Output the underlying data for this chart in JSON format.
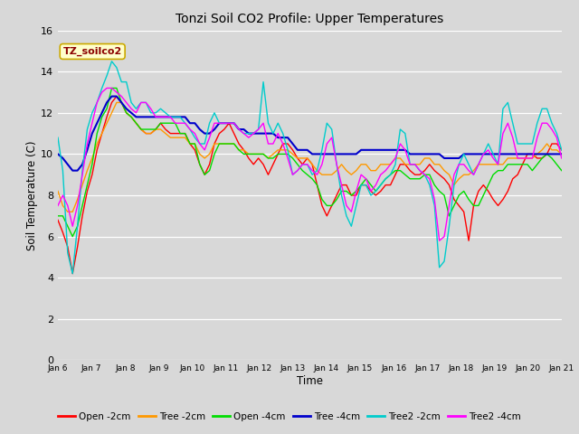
{
  "title": "Tonzi Soil CO2 Profile: Upper Temperatures",
  "xlabel": "Time",
  "ylabel": "Soil Temperature (C)",
  "ylim": [
    0,
    16
  ],
  "yticks": [
    0,
    2,
    4,
    6,
    8,
    10,
    12,
    14,
    16
  ],
  "background_color": "#d8d8d8",
  "plot_bg_color": "#d8d8d8",
  "text_label": "TZ_soilco2",
  "text_label_color": "#8b0000",
  "text_label_bg": "#ffffcc",
  "text_label_edge": "#ccaa00",
  "series": [
    {
      "label": "Open -2cm",
      "color": "#ff0000",
      "linewidth": 1.0,
      "data": [
        6.8,
        6.2,
        5.5,
        4.2,
        5.5,
        7.0,
        8.2,
        9.0,
        10.2,
        11.0,
        11.8,
        12.5,
        12.8,
        12.5,
        12.0,
        11.8,
        11.5,
        11.2,
        11.0,
        11.0,
        11.2,
        11.5,
        11.2,
        11.0,
        11.0,
        11.0,
        11.0,
        10.5,
        10.2,
        9.5,
        9.0,
        9.5,
        10.5,
        11.0,
        11.2,
        11.5,
        11.0,
        10.5,
        10.2,
        9.8,
        9.5,
        9.8,
        9.5,
        9.0,
        9.5,
        10.0,
        10.5,
        10.5,
        10.2,
        9.8,
        9.5,
        9.8,
        9.5,
        8.5,
        7.5,
        7.0,
        7.5,
        8.0,
        8.5,
        8.5,
        8.0,
        8.0,
        8.5,
        8.5,
        8.2,
        8.0,
        8.2,
        8.5,
        8.5,
        9.0,
        9.5,
        9.5,
        9.2,
        9.0,
        9.0,
        9.2,
        9.5,
        9.2,
        9.0,
        8.8,
        8.5,
        7.8,
        7.5,
        7.2,
        5.8,
        7.5,
        8.2,
        8.5,
        8.2,
        7.8,
        7.5,
        7.8,
        8.2,
        8.8,
        9.0,
        9.5,
        10.0,
        10.0,
        9.8,
        9.8,
        10.0,
        10.5,
        10.5,
        10.2
      ]
    },
    {
      "label": "Tree -2cm",
      "color": "#ff9900",
      "linewidth": 1.0,
      "data": [
        8.2,
        7.5,
        7.2,
        7.2,
        7.8,
        8.5,
        9.2,
        9.8,
        10.5,
        11.0,
        11.5,
        12.0,
        12.5,
        12.5,
        12.0,
        11.8,
        11.5,
        11.2,
        11.0,
        11.0,
        11.2,
        11.2,
        11.0,
        10.8,
        10.8,
        10.8,
        10.8,
        10.5,
        10.5,
        10.0,
        9.8,
        10.0,
        10.5,
        10.5,
        10.5,
        10.5,
        10.5,
        10.2,
        10.2,
        10.0,
        10.0,
        10.0,
        10.0,
        9.8,
        10.0,
        10.2,
        10.2,
        10.2,
        10.0,
        9.8,
        9.8,
        9.8,
        9.5,
        9.2,
        9.0,
        9.0,
        9.0,
        9.2,
        9.5,
        9.2,
        9.0,
        9.2,
        9.5,
        9.5,
        9.2,
        9.2,
        9.5,
        9.5,
        9.5,
        9.8,
        9.8,
        9.5,
        9.5,
        9.5,
        9.5,
        9.8,
        9.8,
        9.5,
        9.5,
        9.2,
        9.0,
        8.5,
        8.8,
        9.0,
        9.0,
        9.2,
        9.5,
        9.5,
        9.5,
        9.5,
        9.5,
        9.5,
        9.8,
        9.8,
        9.8,
        9.8,
        9.8,
        9.8,
        10.0,
        10.2,
        10.5,
        10.2,
        10.2,
        10.0
      ]
    },
    {
      "label": "Open -4cm",
      "color": "#00dd00",
      "linewidth": 1.0,
      "data": [
        7.0,
        7.0,
        6.5,
        6.0,
        6.5,
        7.5,
        8.5,
        9.5,
        11.0,
        11.8,
        12.2,
        13.2,
        13.2,
        12.5,
        12.0,
        11.8,
        11.5,
        11.2,
        11.2,
        11.2,
        11.2,
        11.5,
        11.5,
        11.5,
        11.5,
        11.0,
        11.0,
        10.5,
        10.5,
        9.5,
        9.0,
        9.2,
        10.0,
        10.5,
        10.5,
        10.5,
        10.5,
        10.2,
        10.0,
        10.0,
        10.0,
        10.0,
        10.0,
        9.8,
        9.8,
        10.0,
        10.0,
        10.0,
        9.8,
        9.5,
        9.2,
        9.0,
        8.8,
        8.5,
        7.8,
        7.5,
        7.5,
        7.8,
        8.2,
        8.2,
        8.0,
        8.2,
        8.5,
        8.8,
        8.5,
        8.2,
        8.5,
        8.8,
        9.0,
        9.2,
        9.2,
        9.0,
        8.8,
        8.8,
        8.8,
        9.0,
        9.0,
        8.5,
        8.2,
        8.0,
        7.0,
        7.5,
        8.0,
        8.2,
        7.8,
        7.5,
        7.5,
        8.0,
        8.5,
        9.0,
        9.2,
        9.2,
        9.5,
        9.5,
        9.5,
        9.5,
        9.5,
        9.2,
        9.5,
        9.8,
        10.0,
        9.8,
        9.5,
        9.2
      ]
    },
    {
      "label": "Tree -4cm",
      "color": "#0000cc",
      "linewidth": 1.5,
      "data": [
        10.0,
        9.8,
        9.5,
        9.2,
        9.2,
        9.5,
        10.2,
        11.0,
        11.5,
        12.0,
        12.5,
        12.8,
        12.8,
        12.5,
        12.2,
        12.0,
        11.8,
        11.8,
        11.8,
        11.8,
        11.8,
        11.8,
        11.8,
        11.8,
        11.8,
        11.8,
        11.8,
        11.5,
        11.5,
        11.2,
        11.0,
        11.0,
        11.2,
        11.5,
        11.5,
        11.5,
        11.5,
        11.2,
        11.2,
        11.0,
        11.0,
        11.0,
        11.0,
        11.0,
        11.0,
        10.8,
        10.8,
        10.8,
        10.5,
        10.2,
        10.2,
        10.2,
        10.0,
        10.0,
        10.0,
        10.0,
        10.0,
        10.0,
        10.0,
        10.0,
        10.0,
        10.0,
        10.2,
        10.2,
        10.2,
        10.2,
        10.2,
        10.2,
        10.2,
        10.2,
        10.2,
        10.2,
        10.0,
        10.0,
        10.0,
        10.0,
        10.0,
        10.0,
        10.0,
        9.8,
        9.8,
        9.8,
        9.8,
        10.0,
        10.0,
        10.0,
        10.0,
        10.0,
        10.0,
        10.0,
        10.0,
        10.0,
        10.0,
        10.0,
        10.0,
        10.0,
        10.0,
        10.0,
        10.0,
        10.0,
        10.0,
        10.0,
        10.0,
        10.0
      ]
    },
    {
      "label": "Tree2 -2cm",
      "color": "#00cccc",
      "linewidth": 1.0,
      "data": [
        10.8,
        9.2,
        5.2,
        4.2,
        6.5,
        9.2,
        11.2,
        12.0,
        12.5,
        13.2,
        13.8,
        14.5,
        14.2,
        13.5,
        13.5,
        12.5,
        12.2,
        12.5,
        12.5,
        12.0,
        12.0,
        12.2,
        12.0,
        11.8,
        11.8,
        11.8,
        11.5,
        11.2,
        10.8,
        10.5,
        10.5,
        11.5,
        12.0,
        11.5,
        11.5,
        11.5,
        11.5,
        11.2,
        11.0,
        11.0,
        11.0,
        11.2,
        13.5,
        11.5,
        11.0,
        11.5,
        11.0,
        10.2,
        9.0,
        9.2,
        9.5,
        9.5,
        9.0,
        9.2,
        10.2,
        11.5,
        11.2,
        9.5,
        8.0,
        7.0,
        6.5,
        7.5,
        8.5,
        8.5,
        8.0,
        8.2,
        8.5,
        8.8,
        9.0,
        9.5,
        11.2,
        11.0,
        9.5,
        9.5,
        9.2,
        9.0,
        8.5,
        7.5,
        4.5,
        4.8,
        6.5,
        8.5,
        9.5,
        10.0,
        9.5,
        9.0,
        9.5,
        10.0,
        10.5,
        10.0,
        9.5,
        12.2,
        12.5,
        11.5,
        10.5,
        10.5,
        10.5,
        10.5,
        11.5,
        12.2,
        12.2,
        11.5,
        11.0,
        10.2
      ]
    },
    {
      "label": "Tree2 -4cm",
      "color": "#ff00ff",
      "linewidth": 1.0,
      "data": [
        7.5,
        8.0,
        7.5,
        6.5,
        7.5,
        9.0,
        10.5,
        11.5,
        12.5,
        13.0,
        13.2,
        13.2,
        13.0,
        12.8,
        12.5,
        12.2,
        12.0,
        12.5,
        12.5,
        12.2,
        11.8,
        11.8,
        11.8,
        11.8,
        11.5,
        11.5,
        11.5,
        11.2,
        11.0,
        10.5,
        10.2,
        10.8,
        11.5,
        11.5,
        11.5,
        11.5,
        11.5,
        11.2,
        11.0,
        10.8,
        11.0,
        11.2,
        11.5,
        10.5,
        10.5,
        11.0,
        10.5,
        9.8,
        9.0,
        9.2,
        9.5,
        9.5,
        9.2,
        9.0,
        9.5,
        10.5,
        10.8,
        9.5,
        8.5,
        7.5,
        7.2,
        8.2,
        9.0,
        8.8,
        8.2,
        8.5,
        9.0,
        9.2,
        9.5,
        9.8,
        10.5,
        10.2,
        9.5,
        9.5,
        9.2,
        9.0,
        8.8,
        7.8,
        5.8,
        6.0,
        7.5,
        9.0,
        9.5,
        9.5,
        9.2,
        9.0,
        9.5,
        10.0,
        10.2,
        9.8,
        9.5,
        11.0,
        11.5,
        10.8,
        9.8,
        9.8,
        9.8,
        9.8,
        10.8,
        11.5,
        11.5,
        11.2,
        10.8,
        9.8
      ]
    }
  ],
  "xtick_labels": [
    "Jan 6",
    "Jan 7",
    "Jan 8",
    "Jan 9",
    "Jan 10",
    "Jan 11",
    "Jan 12",
    "Jan 13",
    "Jan 14",
    "Jan 15",
    "Jan 16",
    "Jan 17",
    "Jan 18",
    "Jan 19",
    "Jan 20",
    "Jan 21"
  ],
  "n_points": 104
}
